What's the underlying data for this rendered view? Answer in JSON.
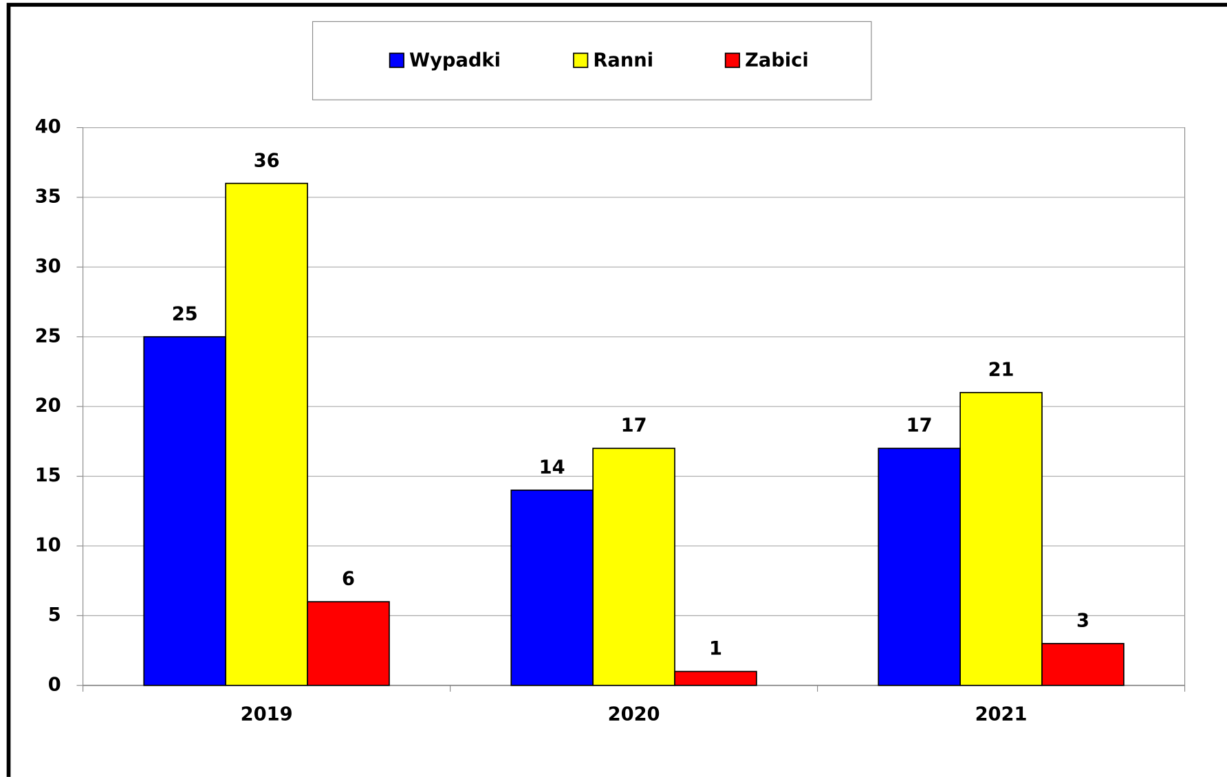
{
  "chart_data": {
    "type": "bar",
    "categories": [
      "2019",
      "2020",
      "2021"
    ],
    "series": [
      {
        "name": "Wypadki",
        "color": "#0000ff",
        "values": [
          25,
          14,
          17
        ]
      },
      {
        "name": "Ranni",
        "color": "#ffff00",
        "values": [
          36,
          17,
          21
        ]
      },
      {
        "name": "Zabici",
        "color": "#ff0000",
        "values": [
          6,
          1,
          3
        ]
      }
    ],
    "ylim": [
      0,
      40
    ],
    "yticks": [
      0,
      5,
      10,
      15,
      20,
      25,
      30,
      35,
      40
    ],
    "grid": true,
    "legend": "top"
  }
}
